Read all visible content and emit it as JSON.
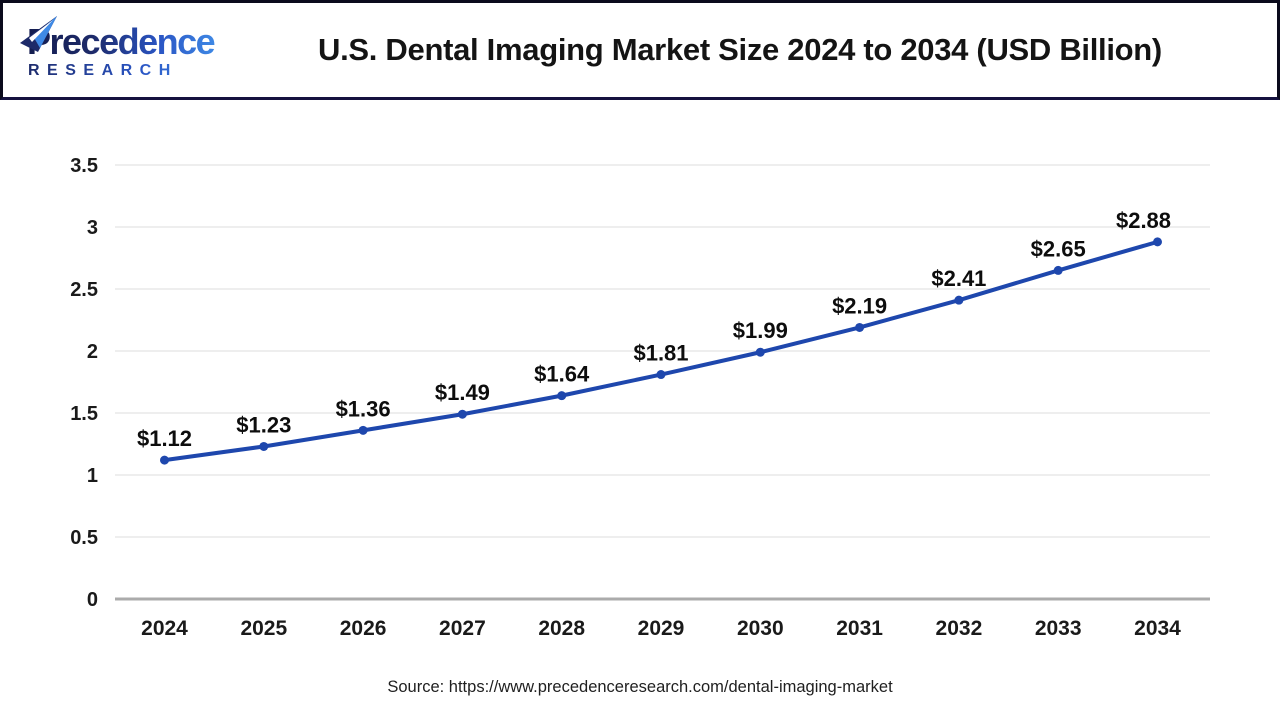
{
  "header": {
    "logo": {
      "brand": "Precedence",
      "subtext": "RESEARCH"
    },
    "title": "U.S. Dental Imaging Market Size 2024 to 2034 (USD Billion)"
  },
  "chart_data": {
    "type": "line",
    "title": "U.S. Dental Imaging Market Size 2024 to 2034 (USD Billion)",
    "categories": [
      "2024",
      "2025",
      "2026",
      "2027",
      "2028",
      "2029",
      "2030",
      "2031",
      "2032",
      "2033",
      "2034"
    ],
    "values": [
      1.12,
      1.23,
      1.36,
      1.49,
      1.64,
      1.81,
      1.99,
      2.19,
      2.41,
      2.65,
      2.88
    ],
    "value_labels": [
      "$1.12",
      "$1.23",
      "$1.36",
      "$1.49",
      "$1.64",
      "$1.81",
      "$1.99",
      "$2.19",
      "$2.41",
      "$2.65",
      "$2.88"
    ],
    "xlabel": "",
    "ylabel": "",
    "ylim": [
      0,
      3.5
    ],
    "yticks": [
      0,
      0.5,
      1,
      1.5,
      2,
      2.5,
      3,
      3.5
    ],
    "ytick_labels": [
      "0",
      "0.5",
      "1",
      "1.5",
      "2",
      "2.5",
      "3",
      "3.5"
    ],
    "grid": true,
    "legend": false,
    "line_color": "#1e47ad",
    "point_color": "#1e47ad",
    "data_label_color": "#0d0d0d",
    "tick_label_color": "#1a1a1a",
    "grid_color": "#e9e9e9",
    "axis_color": "#ababab"
  },
  "footer": {
    "source": "Source: https://www.precedenceresearch.com/dental-imaging-market"
  },
  "colors": {
    "accent_blue": "#1e47ad",
    "logo_navy": "#1d2a69",
    "logo_light_blue": "#3f8ae6",
    "header_border": "#0b0b1c",
    "header_separator": "#15123f"
  }
}
